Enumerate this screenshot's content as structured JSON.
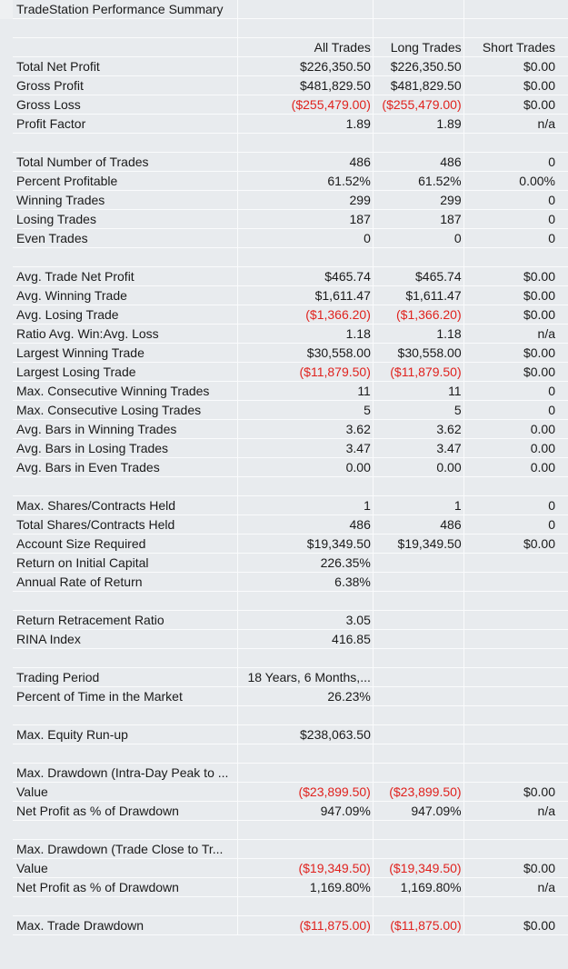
{
  "title": "TradeStation Performance Summary",
  "columns": [
    "All Trades",
    "Long Trades",
    "Short Trades"
  ],
  "rows": [
    {
      "type": "title"
    },
    {
      "type": "blank"
    },
    {
      "type": "header"
    },
    {
      "type": "data",
      "label": "Total Net Profit",
      "values": [
        "$226,350.50",
        "$226,350.50",
        "$0.00"
      ]
    },
    {
      "type": "data",
      "label": "Gross Profit",
      "values": [
        "$481,829.50",
        "$481,829.50",
        "$0.00"
      ]
    },
    {
      "type": "data",
      "label": "Gross Loss",
      "values": [
        "($255,479.00)",
        "($255,479.00)",
        "$0.00"
      ],
      "neg": [
        true,
        true,
        false
      ]
    },
    {
      "type": "data",
      "label": "Profit Factor",
      "values": [
        "1.89",
        "1.89",
        "n/a"
      ]
    },
    {
      "type": "blank"
    },
    {
      "type": "data",
      "label": "Total Number of Trades",
      "values": [
        "486",
        "486",
        "0"
      ]
    },
    {
      "type": "data",
      "label": "Percent Profitable",
      "values": [
        "61.52%",
        "61.52%",
        "0.00%"
      ]
    },
    {
      "type": "data",
      "label": "Winning Trades",
      "values": [
        "299",
        "299",
        "0"
      ]
    },
    {
      "type": "data",
      "label": "Losing Trades",
      "values": [
        "187",
        "187",
        "0"
      ]
    },
    {
      "type": "data",
      "label": "Even Trades",
      "values": [
        "0",
        "0",
        "0"
      ]
    },
    {
      "type": "blank"
    },
    {
      "type": "data",
      "label": "Avg. Trade Net Profit",
      "values": [
        "$465.74",
        "$465.74",
        "$0.00"
      ]
    },
    {
      "type": "data",
      "label": "Avg. Winning Trade",
      "values": [
        "$1,611.47",
        "$1,611.47",
        "$0.00"
      ]
    },
    {
      "type": "data",
      "label": "Avg. Losing Trade",
      "values": [
        "($1,366.20)",
        "($1,366.20)",
        "$0.00"
      ],
      "neg": [
        true,
        true,
        false
      ]
    },
    {
      "type": "data",
      "label": "Ratio Avg. Win:Avg. Loss",
      "values": [
        "1.18",
        "1.18",
        "n/a"
      ]
    },
    {
      "type": "data",
      "label": "Largest Winning Trade",
      "values": [
        "$30,558.00",
        "$30,558.00",
        "$0.00"
      ]
    },
    {
      "type": "data",
      "label": "Largest Losing Trade",
      "values": [
        "($11,879.50)",
        "($11,879.50)",
        "$0.00"
      ],
      "neg": [
        true,
        true,
        false
      ]
    },
    {
      "type": "data",
      "label": "Max. Consecutive Winning Trades",
      "values": [
        "11",
        "11",
        "0"
      ]
    },
    {
      "type": "data",
      "label": "Max. Consecutive Losing Trades",
      "values": [
        "5",
        "5",
        "0"
      ]
    },
    {
      "type": "data",
      "label": "Avg. Bars in Winning Trades",
      "values": [
        "3.62",
        "3.62",
        "0.00"
      ]
    },
    {
      "type": "data",
      "label": "Avg. Bars in Losing Trades",
      "values": [
        "3.47",
        "3.47",
        "0.00"
      ]
    },
    {
      "type": "data",
      "label": "Avg. Bars in Even Trades",
      "values": [
        "0.00",
        "0.00",
        "0.00"
      ]
    },
    {
      "type": "blank"
    },
    {
      "type": "data",
      "label": "Max. Shares/Contracts Held",
      "values": [
        "1",
        "1",
        "0"
      ]
    },
    {
      "type": "data",
      "label": "Total Shares/Contracts Held",
      "values": [
        "486",
        "486",
        "0"
      ]
    },
    {
      "type": "data",
      "label": "Account Size Required",
      "values": [
        "$19,349.50",
        "$19,349.50",
        "$0.00"
      ]
    },
    {
      "type": "data",
      "label": "Return on Initial Capital",
      "values": [
        "226.35%",
        "",
        ""
      ]
    },
    {
      "type": "data",
      "label": "Annual Rate of Return",
      "values": [
        "6.38%",
        "",
        ""
      ]
    },
    {
      "type": "blank"
    },
    {
      "type": "data",
      "label": "Return Retracement Ratio",
      "values": [
        "3.05",
        "",
        ""
      ]
    },
    {
      "type": "data",
      "label": "RINA Index",
      "values": [
        "416.85",
        "",
        ""
      ]
    },
    {
      "type": "blank"
    },
    {
      "type": "data",
      "label": "Trading Period",
      "values": [
        "18 Years, 6 Months,...",
        "",
        ""
      ]
    },
    {
      "type": "data",
      "label": "Percent of Time in the Market",
      "values": [
        "26.23%",
        "",
        ""
      ]
    },
    {
      "type": "blank"
    },
    {
      "type": "data",
      "label": "Max. Equity Run-up",
      "values": [
        "$238,063.50",
        "",
        ""
      ]
    },
    {
      "type": "blank"
    },
    {
      "type": "data",
      "label": "Max. Drawdown (Intra-Day Peak to ...",
      "values": [
        "",
        "",
        ""
      ]
    },
    {
      "type": "data",
      "label": "Value",
      "values": [
        "($23,899.50)",
        "($23,899.50)",
        "$0.00"
      ],
      "neg": [
        true,
        true,
        false
      ]
    },
    {
      "type": "data",
      "label": "Net Profit as % of Drawdown",
      "values": [
        "947.09%",
        "947.09%",
        "n/a"
      ]
    },
    {
      "type": "blank"
    },
    {
      "type": "data",
      "label": "Max. Drawdown (Trade Close to Tr...",
      "values": [
        "",
        "",
        ""
      ]
    },
    {
      "type": "data",
      "label": "Value",
      "values": [
        "($19,349.50)",
        "($19,349.50)",
        "$0.00"
      ],
      "neg": [
        true,
        true,
        false
      ]
    },
    {
      "type": "data",
      "label": "Net Profit as % of Drawdown",
      "values": [
        "1,169.80%",
        "1,169.80%",
        "n/a"
      ]
    },
    {
      "type": "blank"
    },
    {
      "type": "data",
      "label": "Max. Trade Drawdown",
      "values": [
        "($11,875.00)",
        "($11,875.00)",
        "$0.00"
      ],
      "neg": [
        true,
        true,
        false
      ]
    }
  ]
}
